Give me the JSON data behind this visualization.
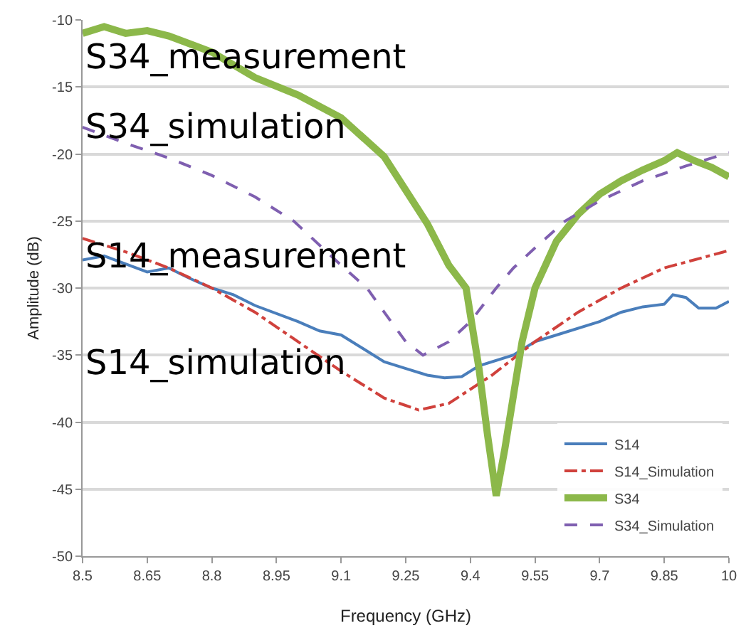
{
  "chart_data": {
    "type": "line",
    "xlabel": "Frequency (GHz)",
    "ylabel": "Amplitude (dB)",
    "xlim": [
      8.5,
      10
    ],
    "xticks": [
      8.5,
      8.65,
      8.8,
      8.95,
      9.1,
      9.25,
      9.4,
      9.55,
      9.7,
      9.85,
      10
    ],
    "ylim": [
      -50,
      -10
    ],
    "yticks": [
      -50,
      -45,
      -40,
      -35,
      -30,
      -25,
      -20,
      -15,
      -10
    ],
    "grid": "y",
    "legend": "bottom right",
    "marker": "none",
    "annotations": [
      "S34_measurement",
      "S34_simulation",
      "S14_measurement",
      "S14_simulation"
    ],
    "series": [
      {
        "name": "S14",
        "color": "#4a7ebb",
        "line_style": "solid",
        "x": [
          8.5,
          8.55,
          8.6,
          8.65,
          8.7,
          8.75,
          8.8,
          8.85,
          8.9,
          9.0,
          9.05,
          9.1,
          9.15,
          9.2,
          9.25,
          9.3,
          9.34,
          9.38,
          9.42,
          9.5,
          9.55,
          9.6,
          9.7,
          9.75,
          9.8,
          9.85,
          9.87,
          9.9,
          9.93,
          9.97,
          10
        ],
        "values": [
          -27.9,
          -27.6,
          -28.2,
          -28.8,
          -28.5,
          -29.3,
          -30,
          -30.5,
          -31.3,
          -32.5,
          -33.2,
          -33.5,
          -34.5,
          -35.5,
          -36,
          -36.5,
          -36.7,
          -36.6,
          -35.8,
          -35,
          -34,
          -33.5,
          -32.5,
          -31.8,
          -31.4,
          -31.2,
          -30.5,
          -30.7,
          -31.5,
          -31.5,
          -31
        ]
      },
      {
        "name": "S14_Simulation",
        "color": "#d0413c",
        "line_style": "dashdot",
        "x": [
          8.5,
          8.6,
          8.7,
          8.8,
          8.9,
          9.0,
          9.1,
          9.2,
          9.28,
          9.35,
          9.45,
          9.55,
          9.65,
          9.75,
          9.85,
          10
        ],
        "values": [
          -26.3,
          -27.3,
          -28.5,
          -30,
          -31.8,
          -34,
          -36.2,
          -38.2,
          -39.1,
          -38.6,
          -36.5,
          -34,
          -31.8,
          -30,
          -28.5,
          -27.2
        ]
      },
      {
        "name": "S34",
        "color": "#8cb84a",
        "line_style": "solid",
        "x": [
          8.5,
          8.55,
          8.6,
          8.65,
          8.7,
          8.8,
          8.9,
          9.0,
          9.1,
          9.2,
          9.3,
          9.35,
          9.39,
          9.42,
          9.44,
          9.46,
          9.48,
          9.5,
          9.52,
          9.55,
          9.6,
          9.65,
          9.7,
          9.75,
          9.8,
          9.85,
          9.88,
          9.92,
          9.96,
          10
        ],
        "values": [
          -11,
          -10.5,
          -11,
          -10.8,
          -11.2,
          -12.4,
          -14.3,
          -15.6,
          -17.3,
          -20.2,
          -25.2,
          -28.3,
          -30,
          -36,
          -41,
          -45.5,
          -42,
          -38,
          -34,
          -30,
          -26.5,
          -24.5,
          -23,
          -22,
          -21.2,
          -20.5,
          -19.9,
          -20.5,
          -21,
          -21.7
        ]
      },
      {
        "name": "S34_Simulation",
        "color": "#7f5fb0",
        "line_style": "dashed",
        "x": [
          8.5,
          8.6,
          8.7,
          8.8,
          8.9,
          8.99,
          9.1,
          9.16,
          9.2,
          9.25,
          9.29,
          9.35,
          9.4,
          9.46,
          9.5,
          9.55,
          9.62,
          9.7,
          9.8,
          9.9,
          10
        ],
        "values": [
          -18,
          -19.2,
          -20.3,
          -21.6,
          -23.2,
          -25,
          -28.3,
          -30,
          -31.8,
          -34,
          -35,
          -34,
          -32.5,
          -30,
          -28.5,
          -27,
          -25,
          -23.5,
          -22,
          -20.9,
          -19.9
        ]
      }
    ]
  }
}
